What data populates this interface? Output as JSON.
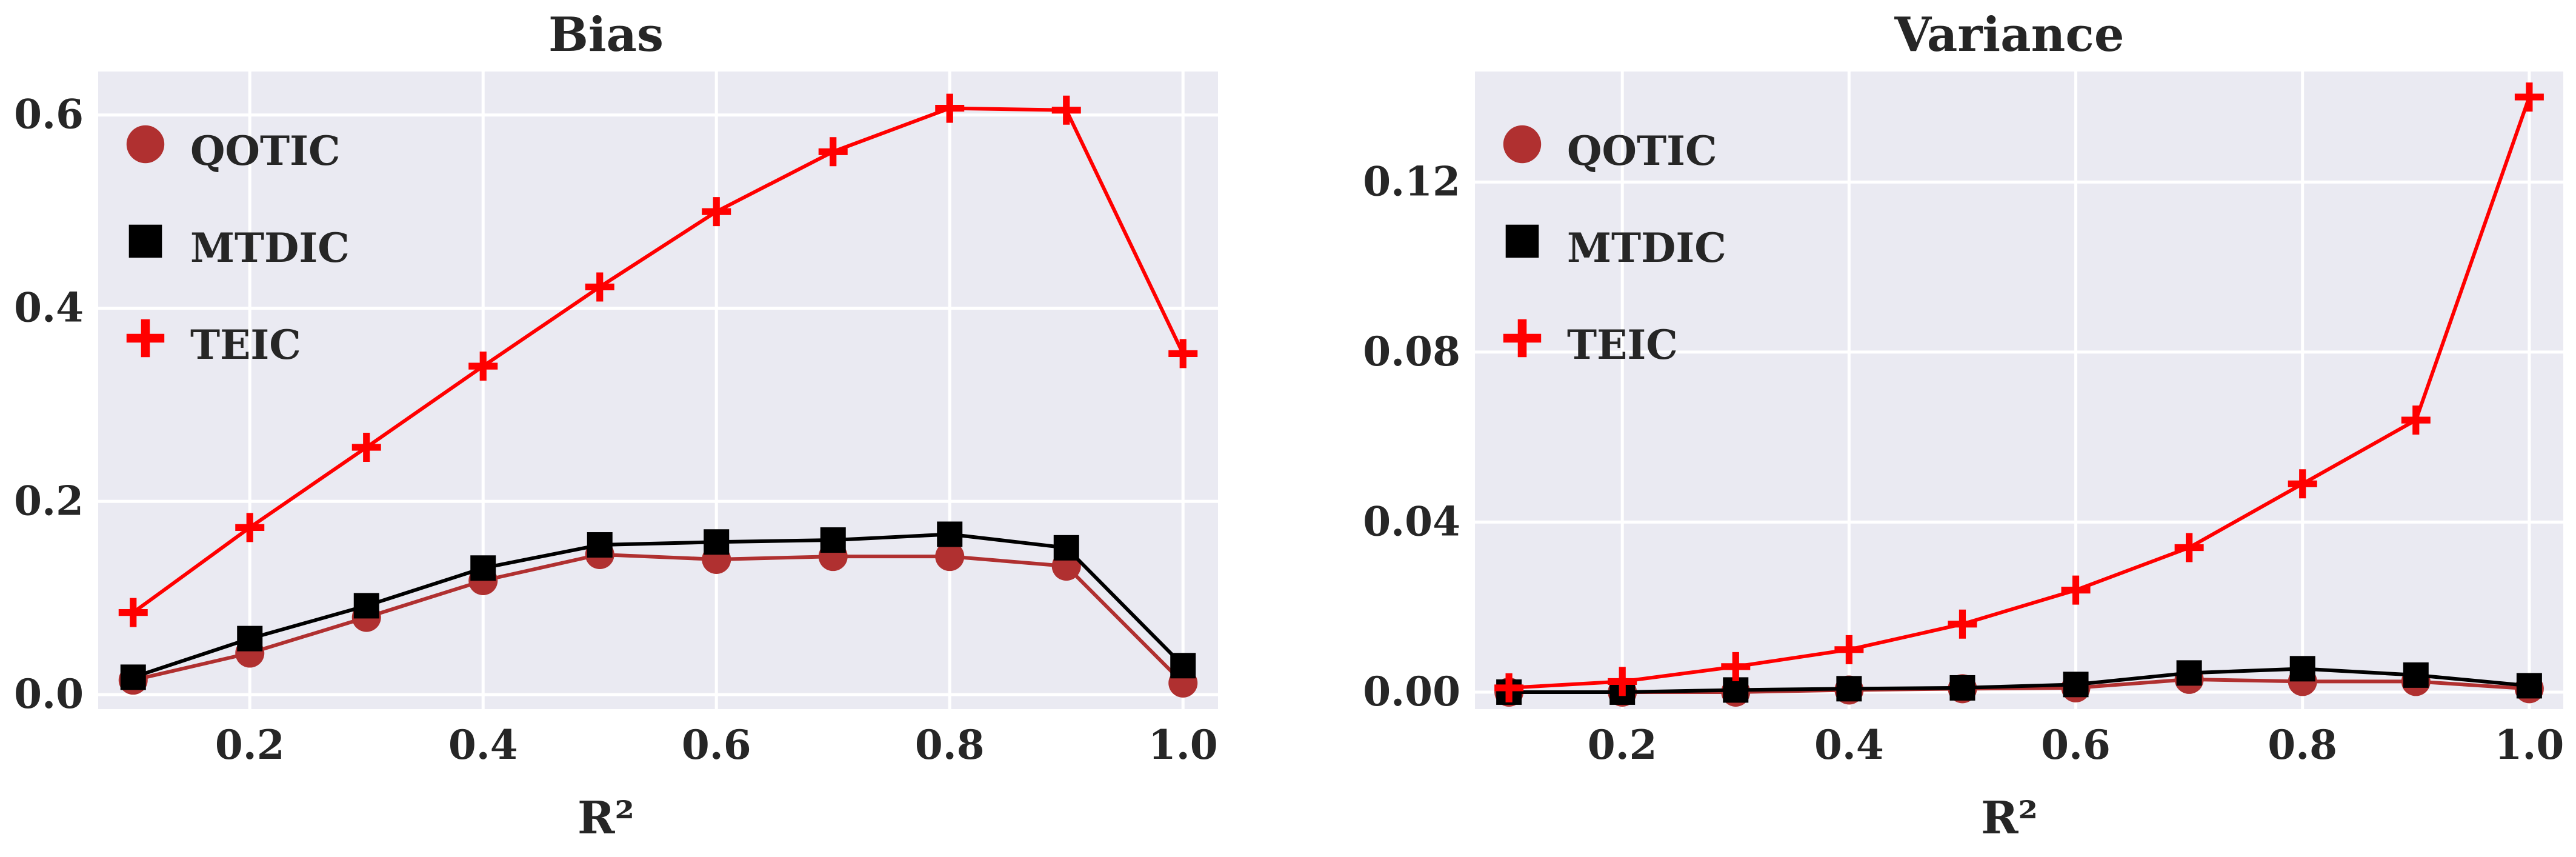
{
  "chart_data": [
    {
      "type": "line",
      "title": "Bias",
      "xlabel": "R²",
      "ylabel": "",
      "xlim": [
        0.07,
        1.03
      ],
      "ylim": [
        -0.015,
        0.645
      ],
      "xticks": [
        0.2,
        0.4,
        0.6,
        0.8,
        1.0
      ],
      "xtick_labels": [
        "0.2",
        "0.4",
        "0.6",
        "0.8",
        "1.0"
      ],
      "yticks": [
        0.0,
        0.2,
        0.4,
        0.6
      ],
      "ytick_labels": [
        "0.0",
        "0.2",
        "0.4",
        "0.6"
      ],
      "grid": true,
      "legend_position": "upper-left",
      "x": [
        0.1,
        0.2,
        0.3,
        0.4,
        0.5,
        0.6,
        0.7,
        0.8,
        0.9,
        1.0
      ],
      "series": [
        {
          "name": "QOTIC",
          "marker": "circle",
          "color": "#b03030",
          "values": [
            0.015,
            0.043,
            0.08,
            0.118,
            0.145,
            0.14,
            0.143,
            0.143,
            0.133,
            0.012
          ]
        },
        {
          "name": "MTDIC",
          "marker": "square",
          "color": "#000000",
          "values": [
            0.018,
            0.058,
            0.092,
            0.131,
            0.155,
            0.158,
            0.16,
            0.166,
            0.152,
            0.03
          ]
        },
        {
          "name": "TEIC",
          "marker": "plus",
          "color": "#ff0000",
          "values": [
            0.085,
            0.173,
            0.256,
            0.34,
            0.422,
            0.5,
            0.562,
            0.607,
            0.605,
            0.353
          ]
        }
      ]
    },
    {
      "type": "line",
      "title": "Variance",
      "xlabel": "R²",
      "ylabel": "",
      "xlim": [
        0.07,
        1.03
      ],
      "ylim": [
        -0.004,
        0.146
      ],
      "xticks": [
        0.2,
        0.4,
        0.6,
        0.8,
        1.0
      ],
      "xtick_labels": [
        "0.2",
        "0.4",
        "0.6",
        "0.8",
        "1.0"
      ],
      "yticks": [
        0.0,
        0.04,
        0.08,
        0.12
      ],
      "ytick_labels": [
        "0.00",
        "0.04",
        "0.08",
        "0.12"
      ],
      "grid": true,
      "legend_position": "upper-left",
      "x": [
        0.1,
        0.2,
        0.3,
        0.4,
        0.5,
        0.6,
        0.7,
        0.8,
        0.9,
        1.0
      ],
      "series": [
        {
          "name": "QOTIC",
          "marker": "circle",
          "color": "#b03030",
          "values": [
            0.0,
            0.0,
            0.0,
            0.0005,
            0.0008,
            0.001,
            0.003,
            0.0025,
            0.0025,
            0.0008
          ]
        },
        {
          "name": "MTDIC",
          "marker": "square",
          "color": "#000000",
          "values": [
            0.0,
            0.0,
            0.0005,
            0.0008,
            0.001,
            0.0018,
            0.0045,
            0.0055,
            0.004,
            0.0015
          ]
        },
        {
          "name": "TEIC",
          "marker": "plus",
          "color": "#ff0000",
          "values": [
            0.001,
            0.0025,
            0.006,
            0.01,
            0.016,
            0.024,
            0.034,
            0.049,
            0.064,
            0.14
          ]
        }
      ]
    }
  ]
}
